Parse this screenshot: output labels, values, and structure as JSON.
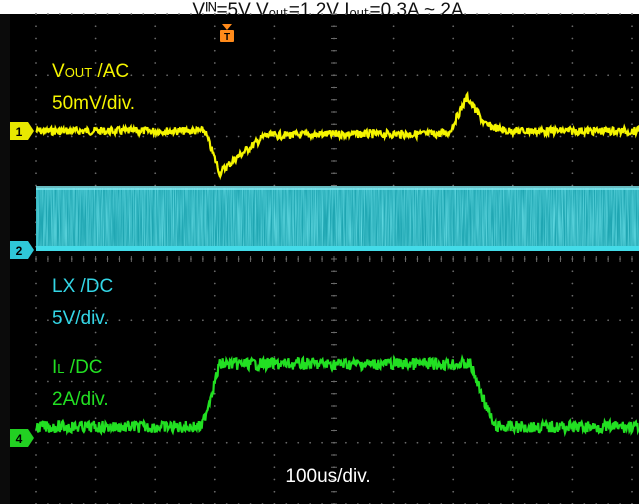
{
  "header": {
    "text": "Vᴵᴺ=5V Vₒᵤₜ=1.2V Iₒᵤₜ=0.3A ~ 2A"
  },
  "channels": [
    {
      "marker": "1",
      "label_line1_main": "V",
      "label_line1_sub": "OUT",
      "label_line1_rest": " /AC",
      "label_line2": "50mV/div.",
      "color": "#f5f500"
    },
    {
      "marker": "2",
      "label_line1_main": "LX /DC",
      "label_line1_sub": "",
      "label_line1_rest": "",
      "label_line2": "5V/div.",
      "color": "#33d6e6"
    },
    {
      "marker": "4",
      "label_line1_main": "I",
      "label_line1_sub": "L",
      "label_line1_rest": " /DC",
      "label_line2": "2A/div.",
      "color": "#22e022"
    }
  ],
  "trigger_marker": "T",
  "timebase": "100us/div.",
  "chart_data": {
    "type": "line",
    "x_unit": "us",
    "x_range": [
      0,
      1000
    ],
    "grid": true,
    "grid_divisions": {
      "x": 10,
      "y": 8
    },
    "series": [
      {
        "name": "VOUT /AC",
        "scale": "50mV/div.",
        "points": [
          [
            0,
            0
          ],
          [
            280,
            0
          ],
          [
            305,
            -1.35
          ],
          [
            330,
            -0.9
          ],
          [
            380,
            -0.15
          ],
          [
            500,
            -0.1
          ],
          [
            660,
            -0.1
          ],
          [
            685,
            -0.05
          ],
          [
            715,
            1.1
          ],
          [
            745,
            0.2
          ],
          [
            780,
            0
          ],
          [
            1000,
            0
          ]
        ]
      },
      {
        "name": "LX /DC",
        "scale": "5V/div.",
        "band": true
      },
      {
        "name": "IL /DC",
        "scale": "2A/div.",
        "points": [
          [
            0,
            0.3
          ],
          [
            275,
            0.3
          ],
          [
            305,
            2
          ],
          [
            720,
            2
          ],
          [
            760,
            0.3
          ],
          [
            1000,
            0.3
          ]
        ]
      }
    ]
  }
}
